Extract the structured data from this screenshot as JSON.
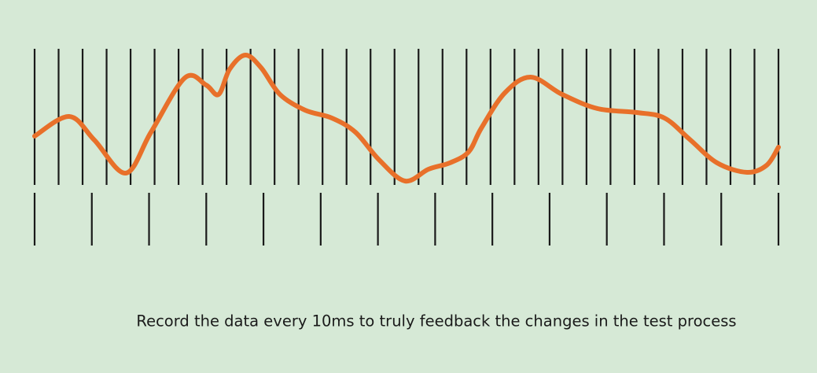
{
  "caption": "Record the data every 10ms to truly feedback the changes in the test process"
}
